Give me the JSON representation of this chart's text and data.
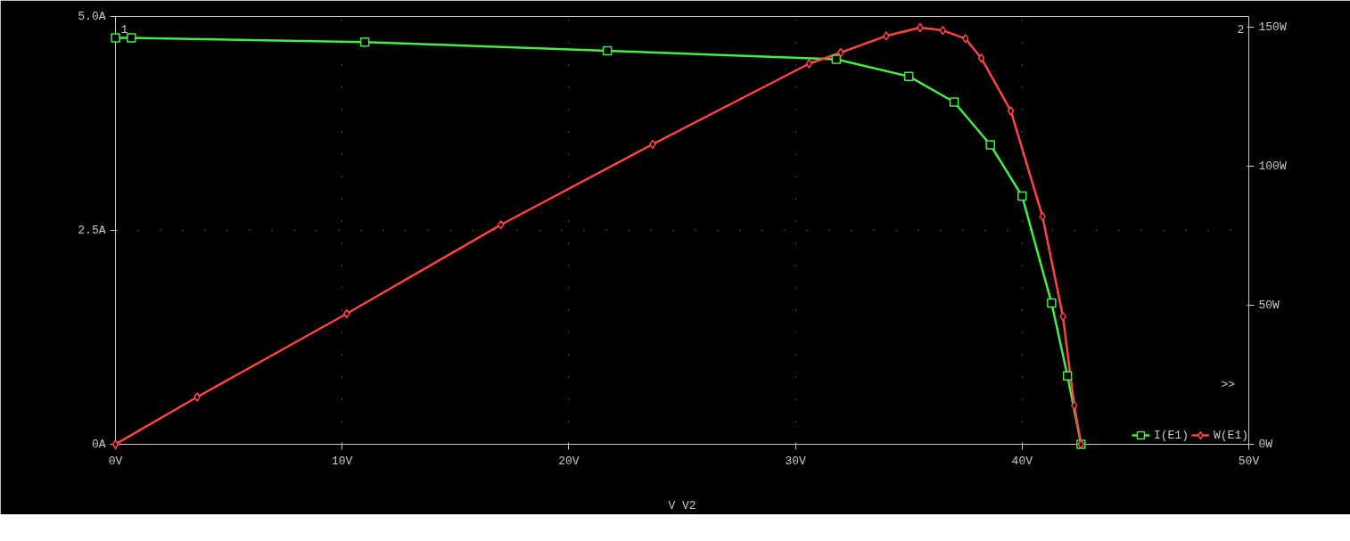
{
  "chart_data": {
    "type": "line",
    "xlabel": "V V2",
    "annotations": [
      "1",
      "2",
      ">>"
    ],
    "xlim": [
      0,
      50
    ],
    "xticks": [
      {
        "value": 0,
        "label": "0V"
      },
      {
        "value": 10,
        "label": "10V"
      },
      {
        "value": 20,
        "label": "20V"
      },
      {
        "value": 30,
        "label": "30V"
      },
      {
        "value": 40,
        "label": "40V"
      },
      {
        "value": 50,
        "label": "50V"
      }
    ],
    "ylim": [
      0,
      5
    ],
    "yticks": [
      {
        "value": 0,
        "label": "0A"
      },
      {
        "value": 2.5,
        "label": "2.5A"
      },
      {
        "value": 5,
        "label": "5.0A"
      }
    ],
    "y2lim": [
      0,
      154
    ],
    "y2ticks": [
      {
        "value": 0,
        "label": "0W"
      },
      {
        "value": 50,
        "label": "50W"
      },
      {
        "value": 100,
        "label": "100W"
      },
      {
        "value": 150,
        "label": "150W"
      }
    ],
    "grid": true,
    "legend": "bottom right",
    "series": [
      {
        "name": "I(E1)",
        "color": "#44ee44",
        "marker": "square",
        "x": [
          0,
          0.7,
          11,
          21.7,
          31.8,
          35,
          37,
          38.6,
          40,
          41.3,
          42,
          42.6
        ],
        "values": [
          4.75,
          4.75,
          4.7,
          4.6,
          4.5,
          4.3,
          4,
          3.5,
          2.9,
          1.65,
          0.8,
          0
        ]
      },
      {
        "name": "W(E1)",
        "color": "#ff4444",
        "marker": "diamond",
        "axis": "y2",
        "x": [
          0,
          3.6,
          10.2,
          17,
          23.7,
          30.6,
          32,
          34,
          35.5,
          36.5,
          37.5,
          38.2,
          39.5,
          40.9,
          41.8,
          42.3,
          42.6
        ],
        "values": [
          0,
          17,
          47,
          79,
          108,
          137,
          141,
          147,
          150,
          149,
          146,
          139,
          120,
          82,
          46,
          14,
          0
        ]
      }
    ]
  }
}
